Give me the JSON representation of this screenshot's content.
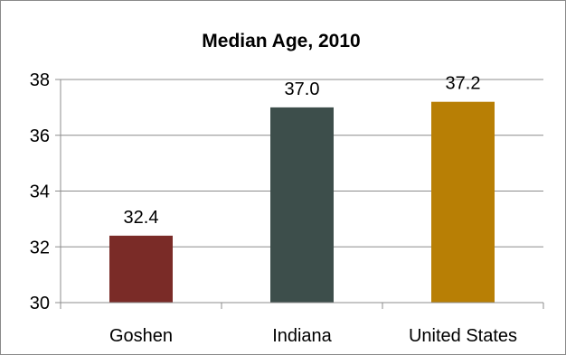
{
  "chart_data": {
    "type": "bar",
    "title": "Median Age, 2010",
    "xlabel": "",
    "ylabel": "",
    "categories": [
      "Goshen",
      "Indiana",
      "United States"
    ],
    "values": [
      32.4,
      37.0,
      37.2
    ],
    "data_labels": [
      "32.4",
      "37.0",
      "37.2"
    ],
    "colors": [
      "#7a2b27",
      "#3d4e4b",
      "#b87f05"
    ],
    "ylim": [
      30,
      38
    ],
    "yticks": [
      30,
      32,
      34,
      36,
      38
    ],
    "ytick_labels": [
      "30",
      "32",
      "34",
      "36",
      "38"
    ],
    "grid": true,
    "legend": "none"
  }
}
